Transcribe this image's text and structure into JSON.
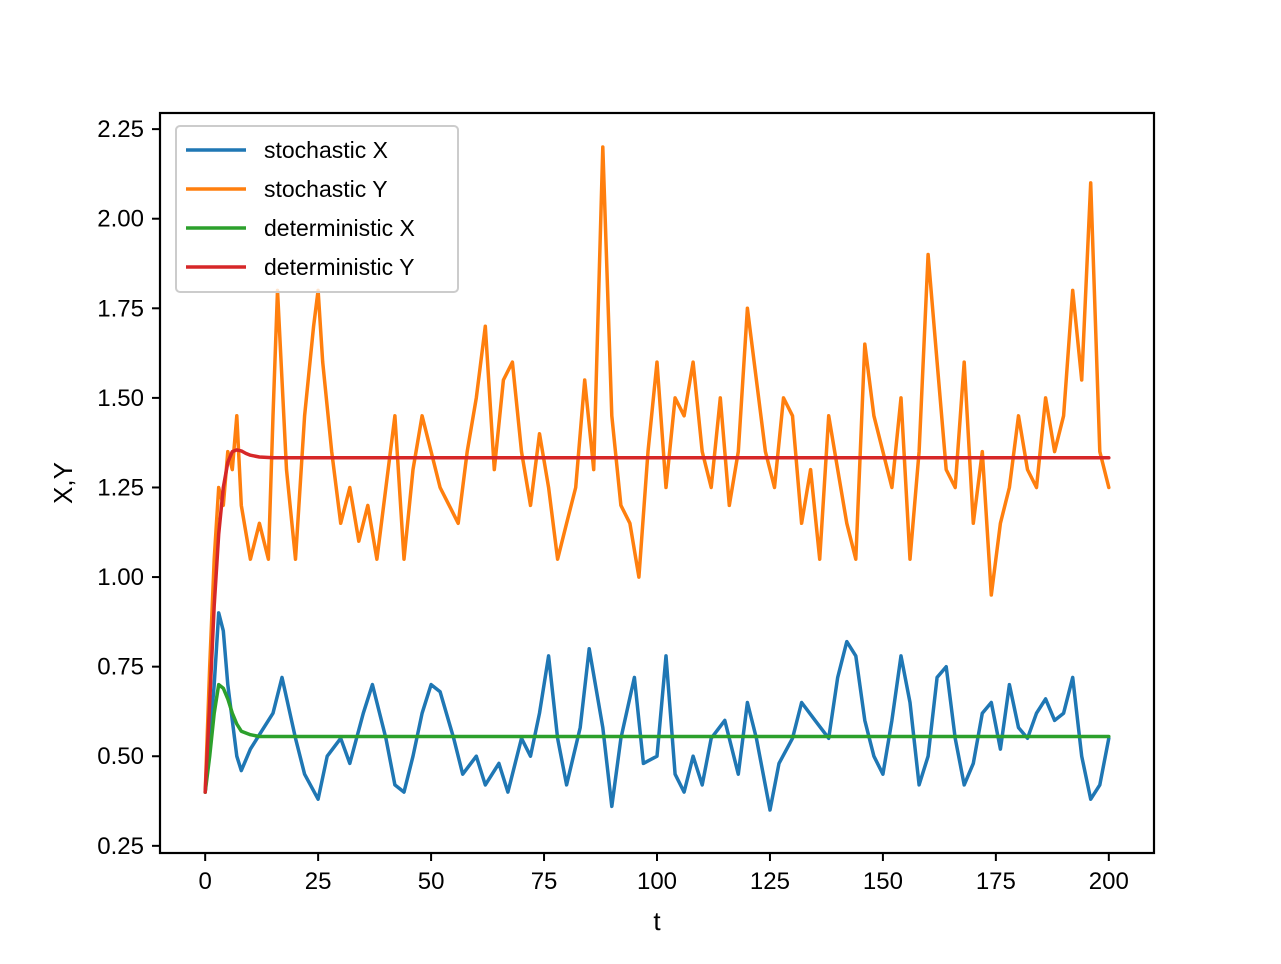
{
  "chart_data": {
    "type": "line",
    "title": "",
    "xlabel": "t",
    "ylabel": "X,Y",
    "xlim": [
      -10,
      210
    ],
    "ylim": [
      0.23,
      2.295
    ],
    "x_ticks": [
      0,
      25,
      50,
      75,
      100,
      125,
      150,
      175,
      200
    ],
    "x_tick_labels": [
      "0",
      "25",
      "50",
      "75",
      "100",
      "125",
      "150",
      "175",
      "200"
    ],
    "y_ticks": [
      0.25,
      0.5,
      0.75,
      1.0,
      1.25,
      1.5,
      1.75,
      2.0,
      2.25
    ],
    "y_tick_labels": [
      "0.25",
      "0.50",
      "0.75",
      "1.00",
      "1.25",
      "1.50",
      "1.75",
      "2.00",
      "2.25"
    ],
    "grid": false,
    "legend_position": "top-left",
    "series": [
      {
        "name": "stochastic X",
        "color": "#1f77b4",
        "x": [
          0,
          2,
          3,
          4,
          5,
          6,
          7,
          8,
          10,
          12,
          15,
          17,
          20,
          22,
          25,
          27,
          30,
          32,
          35,
          37,
          40,
          42,
          44,
          46,
          48,
          50,
          52,
          55,
          57,
          60,
          62,
          65,
          67,
          70,
          72,
          74,
          76,
          78,
          80,
          83,
          85,
          88,
          90,
          92,
          95,
          97,
          100,
          102,
          104,
          106,
          108,
          110,
          112,
          115,
          118,
          120,
          122,
          125,
          127,
          130,
          132,
          135,
          138,
          140,
          142,
          144,
          146,
          148,
          150,
          152,
          154,
          156,
          158,
          160,
          162,
          164,
          166,
          168,
          170,
          172,
          174,
          176,
          178,
          180,
          182,
          184,
          186,
          188,
          190,
          192,
          194,
          196,
          198,
          200
        ],
        "values": [
          0.4,
          0.7,
          0.9,
          0.85,
          0.7,
          0.6,
          0.5,
          0.46,
          0.52,
          0.56,
          0.62,
          0.72,
          0.55,
          0.45,
          0.38,
          0.5,
          0.55,
          0.48,
          0.62,
          0.7,
          0.55,
          0.42,
          0.4,
          0.5,
          0.62,
          0.7,
          0.68,
          0.55,
          0.45,
          0.5,
          0.42,
          0.48,
          0.4,
          0.55,
          0.5,
          0.62,
          0.78,
          0.55,
          0.42,
          0.58,
          0.8,
          0.58,
          0.36,
          0.55,
          0.72,
          0.48,
          0.5,
          0.78,
          0.45,
          0.4,
          0.5,
          0.42,
          0.55,
          0.6,
          0.45,
          0.65,
          0.55,
          0.35,
          0.48,
          0.55,
          0.65,
          0.6,
          0.55,
          0.72,
          0.82,
          0.78,
          0.6,
          0.5,
          0.45,
          0.6,
          0.78,
          0.65,
          0.42,
          0.5,
          0.72,
          0.75,
          0.55,
          0.42,
          0.48,
          0.62,
          0.65,
          0.52,
          0.7,
          0.58,
          0.55,
          0.62,
          0.66,
          0.6,
          0.62,
          0.72,
          0.5,
          0.38,
          0.42,
          0.55
        ]
      },
      {
        "name": "stochastic Y",
        "color": "#ff7f0e",
        "x": [
          0,
          1,
          2,
          3,
          4,
          5,
          6,
          7,
          8,
          10,
          12,
          14,
          15,
          16,
          18,
          20,
          22,
          24,
          25,
          26,
          28,
          30,
          32,
          34,
          36,
          38,
          40,
          42,
          44,
          46,
          48,
          50,
          52,
          54,
          56,
          58,
          60,
          62,
          64,
          66,
          68,
          70,
          72,
          74,
          76,
          78,
          80,
          82,
          84,
          86,
          88,
          90,
          92,
          94,
          96,
          98,
          100,
          102,
          104,
          106,
          108,
          110,
          112,
          114,
          116,
          118,
          120,
          122,
          124,
          126,
          128,
          130,
          132,
          134,
          136,
          138,
          140,
          142,
          144,
          146,
          148,
          150,
          152,
          154,
          156,
          158,
          160,
          162,
          164,
          166,
          168,
          170,
          172,
          174,
          176,
          178,
          180,
          182,
          184,
          186,
          188,
          190,
          192,
          194,
          196,
          198,
          200
        ],
        "values": [
          0.4,
          0.75,
          1.05,
          1.25,
          1.2,
          1.35,
          1.3,
          1.45,
          1.2,
          1.05,
          1.15,
          1.05,
          1.45,
          1.8,
          1.3,
          1.05,
          1.45,
          1.7,
          1.8,
          1.6,
          1.35,
          1.15,
          1.25,
          1.1,
          1.2,
          1.05,
          1.25,
          1.45,
          1.05,
          1.3,
          1.45,
          1.35,
          1.25,
          1.2,
          1.15,
          1.35,
          1.5,
          1.7,
          1.3,
          1.55,
          1.6,
          1.35,
          1.2,
          1.4,
          1.25,
          1.05,
          1.15,
          1.25,
          1.55,
          1.3,
          2.2,
          1.45,
          1.2,
          1.15,
          1.0,
          1.35,
          1.6,
          1.25,
          1.5,
          1.45,
          1.6,
          1.35,
          1.25,
          1.5,
          1.2,
          1.35,
          1.75,
          1.55,
          1.35,
          1.25,
          1.5,
          1.45,
          1.15,
          1.3,
          1.05,
          1.45,
          1.3,
          1.15,
          1.05,
          1.65,
          1.45,
          1.35,
          1.25,
          1.5,
          1.05,
          1.35,
          1.9,
          1.6,
          1.3,
          1.25,
          1.6,
          1.15,
          1.35,
          0.95,
          1.15,
          1.25,
          1.45,
          1.3,
          1.25,
          1.5,
          1.35,
          1.45,
          1.8,
          1.55,
          2.1,
          1.35,
          1.25
        ]
      },
      {
        "name": "deterministic X",
        "color": "#2ca02c",
        "x": [
          0,
          1,
          2,
          3,
          4,
          5,
          6,
          7,
          8,
          10,
          12,
          15,
          20,
          30,
          50,
          100,
          150,
          200
        ],
        "values": [
          0.4,
          0.5,
          0.62,
          0.7,
          0.69,
          0.66,
          0.62,
          0.59,
          0.57,
          0.56,
          0.555,
          0.555,
          0.555,
          0.555,
          0.555,
          0.555,
          0.555,
          0.555
        ]
      },
      {
        "name": "deterministic Y",
        "color": "#d62728",
        "x": [
          0,
          1,
          2,
          3,
          4,
          5,
          6,
          7,
          8,
          9,
          10,
          12,
          15,
          20,
          30,
          50,
          100,
          150,
          200
        ],
        "values": [
          0.4,
          0.65,
          0.92,
          1.12,
          1.25,
          1.32,
          1.35,
          1.355,
          1.352,
          1.345,
          1.34,
          1.335,
          1.333,
          1.333,
          1.333,
          1.333,
          1.333,
          1.333,
          1.333
        ]
      }
    ]
  }
}
